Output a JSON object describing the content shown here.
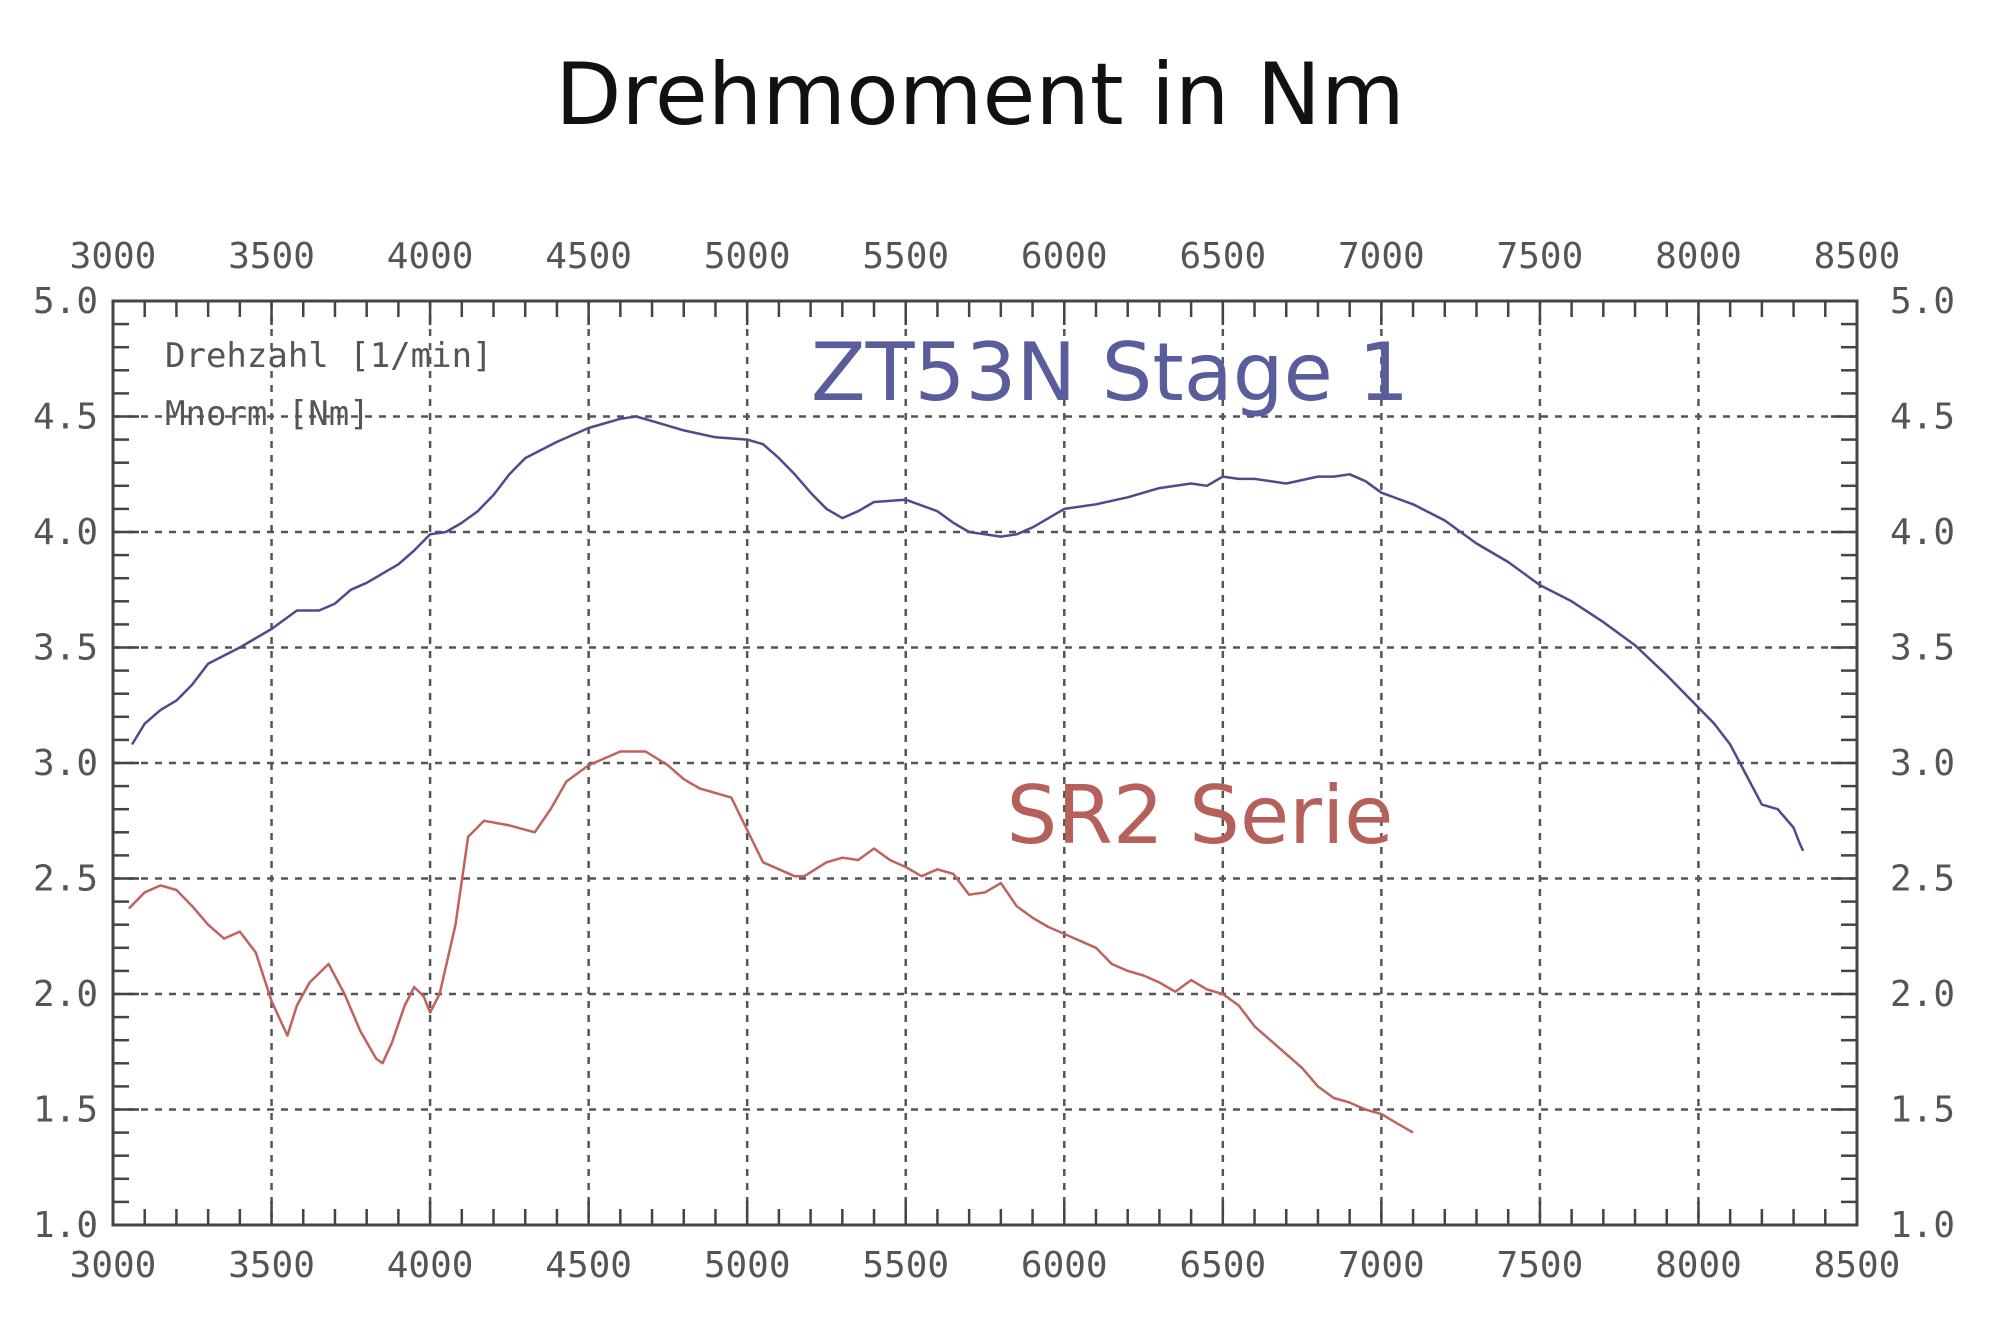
{
  "title": "Drehmoment in Nm",
  "chart_data": {
    "type": "line",
    "title": "Drehmoment in Nm",
    "xlabel": "Drehzahl [1/min]",
    "ylabel": "Mnorm [Nm]",
    "xlim": [
      3000,
      8500
    ],
    "ylim": [
      1.0,
      5.0
    ],
    "x_ticks": [
      "3000",
      "3500",
      "4000",
      "4500",
      "5000",
      "5500",
      "6000",
      "6500",
      "7000",
      "7500",
      "8000",
      "8500"
    ],
    "y_ticks": [
      "1.0",
      "1.5",
      "2.0",
      "2.5",
      "3.0",
      "3.5",
      "4.0",
      "4.5",
      "5.0"
    ],
    "grid": true,
    "grid_style": "dashed",
    "series": [
      {
        "name": "ZT53N Stage 1",
        "color": "#4a4d8c",
        "label_color": "#5a5d9c",
        "points": [
          [
            3060,
            3.08
          ],
          [
            3100,
            3.17
          ],
          [
            3150,
            3.23
          ],
          [
            3200,
            3.27
          ],
          [
            3250,
            3.34
          ],
          [
            3300,
            3.43
          ],
          [
            3400,
            3.5
          ],
          [
            3500,
            3.58
          ],
          [
            3580,
            3.66
          ],
          [
            3650,
            3.66
          ],
          [
            3700,
            3.69
          ],
          [
            3750,
            3.75
          ],
          [
            3800,
            3.78
          ],
          [
            3850,
            3.82
          ],
          [
            3900,
            3.86
          ],
          [
            3950,
            3.92
          ],
          [
            4000,
            3.99
          ],
          [
            4050,
            4.0
          ],
          [
            4100,
            4.04
          ],
          [
            4150,
            4.09
          ],
          [
            4200,
            4.16
          ],
          [
            4250,
            4.25
          ],
          [
            4300,
            4.32
          ],
          [
            4400,
            4.39
          ],
          [
            4500,
            4.45
          ],
          [
            4600,
            4.49
          ],
          [
            4650,
            4.5
          ],
          [
            4700,
            4.48
          ],
          [
            4800,
            4.44
          ],
          [
            4900,
            4.41
          ],
          [
            5000,
            4.4
          ],
          [
            5050,
            4.38
          ],
          [
            5100,
            4.32
          ],
          [
            5150,
            4.25
          ],
          [
            5200,
            4.17
          ],
          [
            5250,
            4.1
          ],
          [
            5300,
            4.06
          ],
          [
            5350,
            4.09
          ],
          [
            5400,
            4.13
          ],
          [
            5500,
            4.14
          ],
          [
            5600,
            4.09
          ],
          [
            5650,
            4.04
          ],
          [
            5700,
            4.0
          ],
          [
            5750,
            3.99
          ],
          [
            5800,
            3.98
          ],
          [
            5850,
            3.99
          ],
          [
            5900,
            4.02
          ],
          [
            6000,
            4.1
          ],
          [
            6100,
            4.12
          ],
          [
            6200,
            4.15
          ],
          [
            6300,
            4.19
          ],
          [
            6400,
            4.21
          ],
          [
            6450,
            4.2
          ],
          [
            6500,
            4.24
          ],
          [
            6550,
            4.23
          ],
          [
            6600,
            4.23
          ],
          [
            6700,
            4.21
          ],
          [
            6800,
            4.24
          ],
          [
            6850,
            4.24
          ],
          [
            6900,
            4.25
          ],
          [
            6950,
            4.22
          ],
          [
            7000,
            4.17
          ],
          [
            7100,
            4.12
          ],
          [
            7200,
            4.05
          ],
          [
            7300,
            3.95
          ],
          [
            7400,
            3.87
          ],
          [
            7500,
            3.77
          ],
          [
            7600,
            3.7
          ],
          [
            7700,
            3.61
          ],
          [
            7800,
            3.51
          ],
          [
            7900,
            3.38
          ],
          [
            8000,
            3.24
          ],
          [
            8050,
            3.17
          ],
          [
            8100,
            3.08
          ],
          [
            8150,
            2.95
          ],
          [
            8200,
            2.82
          ],
          [
            8250,
            2.8
          ],
          [
            8300,
            2.72
          ],
          [
            8320,
            2.65
          ],
          [
            8330,
            2.62
          ]
        ]
      },
      {
        "name": "SR2 Serie",
        "color": "#c0625d",
        "label_color": "#b5605a",
        "points": [
          [
            3050,
            2.37
          ],
          [
            3100,
            2.44
          ],
          [
            3150,
            2.47
          ],
          [
            3200,
            2.45
          ],
          [
            3250,
            2.38
          ],
          [
            3300,
            2.3
          ],
          [
            3350,
            2.24
          ],
          [
            3400,
            2.27
          ],
          [
            3450,
            2.18
          ],
          [
            3500,
            1.97
          ],
          [
            3550,
            1.82
          ],
          [
            3580,
            1.95
          ],
          [
            3620,
            2.05
          ],
          [
            3680,
            2.13
          ],
          [
            3730,
            2.0
          ],
          [
            3780,
            1.84
          ],
          [
            3830,
            1.72
          ],
          [
            3850,
            1.7
          ],
          [
            3880,
            1.79
          ],
          [
            3920,
            1.95
          ],
          [
            3950,
            2.03
          ],
          [
            3980,
            1.99
          ],
          [
            4000,
            1.92
          ],
          [
            4030,
            2.0
          ],
          [
            4080,
            2.3
          ],
          [
            4120,
            2.68
          ],
          [
            4170,
            2.75
          ],
          [
            4250,
            2.73
          ],
          [
            4330,
            2.7
          ],
          [
            4380,
            2.8
          ],
          [
            4430,
            2.92
          ],
          [
            4500,
            2.99
          ],
          [
            4600,
            3.05
          ],
          [
            4680,
            3.05
          ],
          [
            4750,
            2.99
          ],
          [
            4800,
            2.93
          ],
          [
            4850,
            2.89
          ],
          [
            4950,
            2.85
          ],
          [
            5000,
            2.71
          ],
          [
            5050,
            2.57
          ],
          [
            5150,
            2.51
          ],
          [
            5180,
            2.51
          ],
          [
            5250,
            2.57
          ],
          [
            5300,
            2.59
          ],
          [
            5350,
            2.58
          ],
          [
            5400,
            2.63
          ],
          [
            5450,
            2.58
          ],
          [
            5500,
            2.55
          ],
          [
            5550,
            2.51
          ],
          [
            5600,
            2.54
          ],
          [
            5650,
            2.52
          ],
          [
            5700,
            2.43
          ],
          [
            5750,
            2.44
          ],
          [
            5800,
            2.48
          ],
          [
            5850,
            2.38
          ],
          [
            5900,
            2.33
          ],
          [
            5950,
            2.29
          ],
          [
            6000,
            2.26
          ],
          [
            6050,
            2.23
          ],
          [
            6100,
            2.2
          ],
          [
            6150,
            2.13
          ],
          [
            6200,
            2.1
          ],
          [
            6250,
            2.08
          ],
          [
            6300,
            2.05
          ],
          [
            6350,
            2.01
          ],
          [
            6400,
            2.06
          ],
          [
            6450,
            2.02
          ],
          [
            6500,
            2.0
          ],
          [
            6550,
            1.95
          ],
          [
            6600,
            1.86
          ],
          [
            6650,
            1.8
          ],
          [
            6700,
            1.74
          ],
          [
            6750,
            1.68
          ],
          [
            6800,
            1.6
          ],
          [
            6850,
            1.55
          ],
          [
            6900,
            1.53
          ],
          [
            6950,
            1.5
          ],
          [
            7000,
            1.48
          ],
          [
            7050,
            1.44
          ],
          [
            7100,
            1.4
          ]
        ]
      }
    ],
    "legend": [
      "Drehzahl [1/min]",
      "Mnorm [Nm]"
    ]
  }
}
